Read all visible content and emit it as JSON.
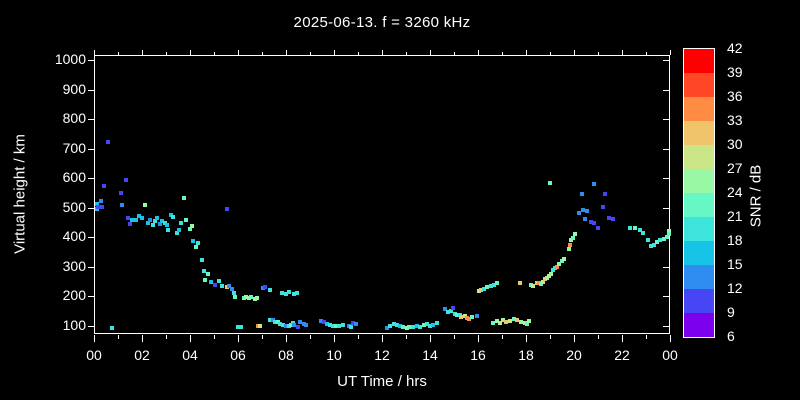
{
  "title": "2025-06-13. f = 3260 kHz",
  "colors": {
    "background": "#000000",
    "foreground": "#ffffff"
  },
  "chart_data": {
    "type": "scatter",
    "title": "2025-06-13. f = 3260 kHz",
    "xlabel": "UT Time / hrs",
    "ylabel": "Virtual height / km",
    "xlim_hours": [
      0,
      24
    ],
    "ylim_km": [
      55,
      1012
    ],
    "grid": false,
    "x_major_ticks_hours": [
      0,
      2,
      4,
      6,
      8,
      10,
      12,
      14,
      16,
      18,
      20,
      22,
      24
    ],
    "x_tick_labels": [
      "00",
      "02",
      "04",
      "06",
      "08",
      "10",
      "12",
      "14",
      "16",
      "18",
      "20",
      "22",
      "00"
    ],
    "x_minor_ticks_hours": [
      1,
      3,
      5,
      7,
      9,
      11,
      13,
      15,
      17,
      19,
      21,
      23
    ],
    "y_major_ticks_km": [
      100,
      200,
      300,
      400,
      500,
      600,
      700,
      800,
      900,
      1000
    ],
    "y_tick_labels": [
      "100",
      "200",
      "300",
      "400",
      "500",
      "600",
      "700",
      "800",
      "900",
      "1000"
    ],
    "colorbar": {
      "label": "SNR / dB",
      "min": 6,
      "max": 42,
      "step": 3,
      "tick_labels_top_to_bottom": [
        "42",
        "39",
        "36",
        "33",
        "30",
        "27",
        "24",
        "21",
        "18",
        "15",
        "12",
        "9",
        "6"
      ],
      "segment_colors_top_to_bottom": [
        "#ff0000",
        "#ff4726",
        "#ff8c42",
        "#f0c46a",
        "#cbe687",
        "#99f8a4",
        "#66f8c4",
        "#3ce4dc",
        "#18c3e8",
        "#2f8cf0",
        "#4646f5",
        "#7d00ec"
      ]
    },
    "points_hr_km_snr": [
      [
        0.02,
        496,
        16
      ],
      [
        0.08,
        513,
        16
      ],
      [
        0.12,
        503,
        10
      ],
      [
        0.25,
        523,
        13
      ],
      [
        0.3,
        503,
        10
      ],
      [
        0.37,
        574,
        10
      ],
      [
        0.54,
        722,
        10
      ],
      [
        0.7,
        92,
        19
      ],
      [
        1.07,
        550,
        10
      ],
      [
        1.12,
        509,
        13
      ],
      [
        1.3,
        594,
        10
      ],
      [
        1.37,
        465,
        10
      ],
      [
        1.45,
        445,
        10
      ],
      [
        1.55,
        460,
        16
      ],
      [
        1.7,
        458,
        16
      ],
      [
        1.85,
        472,
        16
      ],
      [
        1.95,
        466,
        16
      ],
      [
        2.1,
        509,
        25
      ],
      [
        2.2,
        450,
        16
      ],
      [
        2.3,
        460,
        13
      ],
      [
        2.4,
        442,
        19
      ],
      [
        2.5,
        455,
        19
      ],
      [
        2.6,
        466,
        16
      ],
      [
        2.7,
        444,
        13
      ],
      [
        2.8,
        455,
        16
      ],
      [
        2.9,
        450,
        19
      ],
      [
        3.0,
        441,
        16
      ],
      [
        3.05,
        425,
        19
      ],
      [
        3.15,
        475,
        16
      ],
      [
        3.25,
        470,
        19
      ],
      [
        3.4,
        415,
        19
      ],
      [
        3.5,
        425,
        16
      ],
      [
        3.6,
        448,
        19
      ],
      [
        3.7,
        533,
        22
      ],
      [
        3.8,
        458,
        22
      ],
      [
        3.95,
        428,
        22
      ],
      [
        4.05,
        440,
        25
      ],
      [
        4.1,
        388,
        16
      ],
      [
        4.2,
        368,
        22
      ],
      [
        4.3,
        380,
        19
      ],
      [
        4.45,
        323,
        19
      ],
      [
        4.55,
        286,
        19
      ],
      [
        4.6,
        256,
        22
      ],
      [
        4.7,
        276,
        22
      ],
      [
        4.85,
        249,
        16
      ],
      [
        5.0,
        239,
        10
      ],
      [
        5.15,
        252,
        19
      ],
      [
        5.3,
        235,
        19
      ],
      [
        5.5,
        232,
        31
      ],
      [
        5.5,
        496,
        10
      ],
      [
        5.6,
        235,
        13
      ],
      [
        5.7,
        225,
        13
      ],
      [
        5.8,
        212,
        19
      ],
      [
        5.85,
        198,
        22
      ],
      [
        5.95,
        97,
        19
      ],
      [
        6.1,
        95,
        19
      ],
      [
        6.2,
        195,
        22
      ],
      [
        6.3,
        197,
        25
      ],
      [
        6.4,
        194,
        25
      ],
      [
        6.5,
        198,
        22
      ],
      [
        6.65,
        193,
        25
      ],
      [
        6.75,
        196,
        25
      ],
      [
        6.78,
        100,
        34
      ],
      [
        6.87,
        100,
        28
      ],
      [
        7.0,
        229,
        13
      ],
      [
        7.1,
        232,
        10
      ],
      [
        7.3,
        221,
        19
      ],
      [
        7.3,
        119,
        19
      ],
      [
        7.42,
        119,
        13
      ],
      [
        7.5,
        115,
        19
      ],
      [
        7.62,
        112,
        22
      ],
      [
        7.7,
        108,
        19
      ],
      [
        7.85,
        103,
        19
      ],
      [
        7.95,
        100,
        13
      ],
      [
        8.08,
        100,
        19
      ],
      [
        8.15,
        104,
        22
      ],
      [
        8.25,
        110,
        19
      ],
      [
        8.3,
        103,
        13
      ],
      [
        8.45,
        98,
        10
      ],
      [
        8.55,
        113,
        13
      ],
      [
        8.7,
        108,
        13
      ],
      [
        8.8,
        105,
        13
      ],
      [
        7.8,
        211,
        19
      ],
      [
        7.95,
        208,
        19
      ],
      [
        8.1,
        215,
        19
      ],
      [
        8.3,
        208,
        19
      ],
      [
        8.42,
        211,
        19
      ],
      [
        9.4,
        117,
        13
      ],
      [
        9.55,
        114,
        10
      ],
      [
        9.65,
        107,
        16
      ],
      [
        9.78,
        104,
        19
      ],
      [
        9.9,
        100,
        19
      ],
      [
        10.05,
        100,
        22
      ],
      [
        10.15,
        100,
        19
      ],
      [
        10.35,
        104,
        19
      ],
      [
        10.58,
        100,
        13
      ],
      [
        10.68,
        98,
        19
      ],
      [
        10.75,
        110,
        10
      ],
      [
        10.87,
        107,
        13
      ],
      [
        12.18,
        93,
        13
      ],
      [
        12.3,
        100,
        19
      ],
      [
        12.45,
        107,
        19
      ],
      [
        12.6,
        104,
        19
      ],
      [
        12.72,
        100,
        16
      ],
      [
        12.85,
        97,
        22
      ],
      [
        13.0,
        93,
        25
      ],
      [
        13.1,
        95,
        22
      ],
      [
        13.25,
        97,
        19
      ],
      [
        13.4,
        100,
        16
      ],
      [
        13.55,
        95,
        19
      ],
      [
        13.7,
        104,
        22
      ],
      [
        13.82,
        107,
        19
      ],
      [
        13.95,
        100,
        19
      ],
      [
        14.1,
        105,
        16
      ],
      [
        14.25,
        110,
        19
      ],
      [
        14.6,
        157,
        13
      ],
      [
        14.72,
        148,
        19
      ],
      [
        14.85,
        151,
        19
      ],
      [
        14.92,
        160,
        10
      ],
      [
        15.0,
        140,
        19
      ],
      [
        15.1,
        137,
        22
      ],
      [
        15.2,
        138,
        19
      ],
      [
        15.27,
        130,
        31
      ],
      [
        15.4,
        134,
        28
      ],
      [
        15.5,
        127,
        34
      ],
      [
        15.6,
        124,
        34
      ],
      [
        15.7,
        130,
        22
      ],
      [
        15.9,
        134,
        13
      ],
      [
        16.0,
        218,
        28
      ],
      [
        16.1,
        221,
        31
      ],
      [
        16.2,
        225,
        19
      ],
      [
        16.35,
        232,
        22
      ],
      [
        16.5,
        236,
        19
      ],
      [
        16.62,
        239,
        19
      ],
      [
        16.75,
        245,
        22
      ],
      [
        16.6,
        110,
        22
      ],
      [
        16.75,
        117,
        25
      ],
      [
        16.87,
        110,
        28
      ],
      [
        17.0,
        120,
        25
      ],
      [
        17.12,
        113,
        31
      ],
      [
        17.3,
        117,
        28
      ],
      [
        17.45,
        124,
        22
      ],
      [
        17.6,
        120,
        31
      ],
      [
        17.75,
        113,
        25
      ],
      [
        17.9,
        110,
        28
      ],
      [
        18.0,
        107,
        22
      ],
      [
        18.1,
        117,
        25
      ],
      [
        17.7,
        245,
        31
      ],
      [
        18.15,
        238,
        22
      ],
      [
        18.25,
        236,
        28
      ],
      [
        18.4,
        245,
        31
      ],
      [
        18.5,
        247,
        34
      ],
      [
        18.6,
        242,
        22
      ],
      [
        18.65,
        249,
        28
      ],
      [
        18.75,
        259,
        31
      ],
      [
        18.85,
        262,
        25
      ],
      [
        18.9,
        269,
        28
      ],
      [
        18.96,
        584,
        22
      ],
      [
        19.0,
        276,
        25
      ],
      [
        19.1,
        290,
        19
      ],
      [
        19.18,
        296,
        19
      ],
      [
        19.25,
        300,
        34
      ],
      [
        19.33,
        310,
        25
      ],
      [
        19.45,
        320,
        22
      ],
      [
        19.55,
        327,
        25
      ],
      [
        19.75,
        360,
        25
      ],
      [
        19.8,
        374,
        34
      ],
      [
        19.85,
        390,
        25
      ],
      [
        19.92,
        397,
        22
      ],
      [
        19.98,
        411,
        25
      ],
      [
        20.17,
        482,
        13
      ],
      [
        20.3,
        547,
        13
      ],
      [
        20.35,
        492,
        13
      ],
      [
        20.42,
        462,
        13
      ],
      [
        20.5,
        489,
        13
      ],
      [
        20.65,
        452,
        10
      ],
      [
        20.78,
        448,
        10
      ],
      [
        20.8,
        580,
        13
      ],
      [
        20.95,
        432,
        10
      ],
      [
        21.15,
        503,
        10
      ],
      [
        21.25,
        547,
        10
      ],
      [
        21.4,
        465,
        10
      ],
      [
        21.6,
        462,
        10
      ],
      [
        22.3,
        432,
        19
      ],
      [
        22.5,
        430,
        22
      ],
      [
        22.7,
        425,
        19
      ],
      [
        22.82,
        415,
        19
      ],
      [
        23.05,
        390,
        19
      ],
      [
        23.15,
        372,
        19
      ],
      [
        23.28,
        375,
        19
      ],
      [
        23.4,
        385,
        22
      ],
      [
        23.55,
        390,
        19
      ],
      [
        23.7,
        395,
        22
      ],
      [
        23.85,
        400,
        22
      ],
      [
        23.92,
        421,
        25
      ],
      [
        23.98,
        410,
        22
      ]
    ]
  }
}
